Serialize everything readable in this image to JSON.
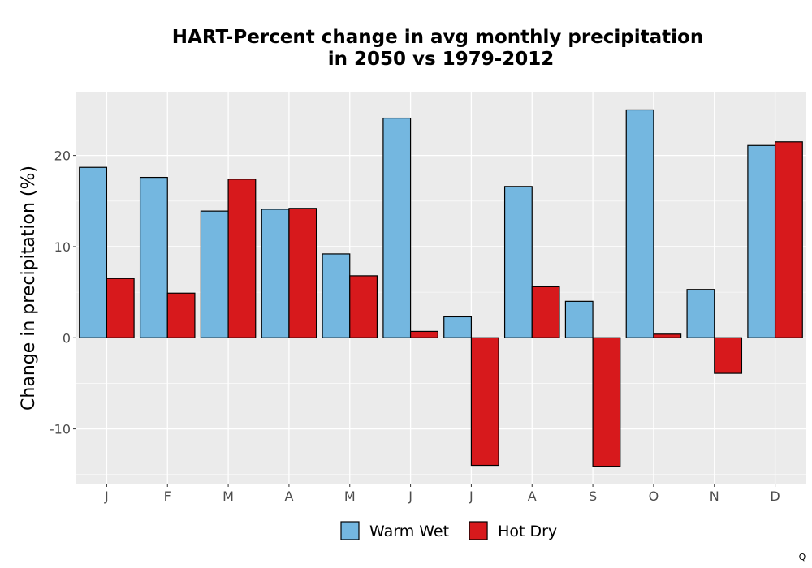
{
  "chart_data": {
    "type": "bar",
    "title_lines": [
      "HART-Percent change in avg monthly precipitation",
      "in 2050 vs 1979-2012"
    ],
    "xlabel": "",
    "ylabel": "Change in precipitation (%)",
    "categories": [
      "J",
      "F",
      "M",
      "A",
      "M",
      "J",
      "J",
      "A",
      "S",
      "O",
      "N",
      "D"
    ],
    "series": [
      {
        "name": "Warm Wet",
        "color": "#74b7e0",
        "values": [
          18.7,
          17.6,
          13.9,
          14.1,
          9.2,
          24.1,
          2.3,
          16.6,
          4.0,
          25.0,
          5.3,
          21.1
        ]
      },
      {
        "name": "Hot Dry",
        "color": "#d7191c",
        "values": [
          6.5,
          4.9,
          17.4,
          14.2,
          6.8,
          0.7,
          -14.0,
          5.6,
          -14.1,
          0.4,
          -3.9,
          21.5
        ]
      }
    ],
    "ylim": [
      -16,
      27
    ],
    "yticks": [
      -10,
      0,
      10,
      20
    ],
    "grid": true,
    "legend_position": "bottom",
    "panel_background": "#ebebeb"
  },
  "corner_mark": "Q"
}
